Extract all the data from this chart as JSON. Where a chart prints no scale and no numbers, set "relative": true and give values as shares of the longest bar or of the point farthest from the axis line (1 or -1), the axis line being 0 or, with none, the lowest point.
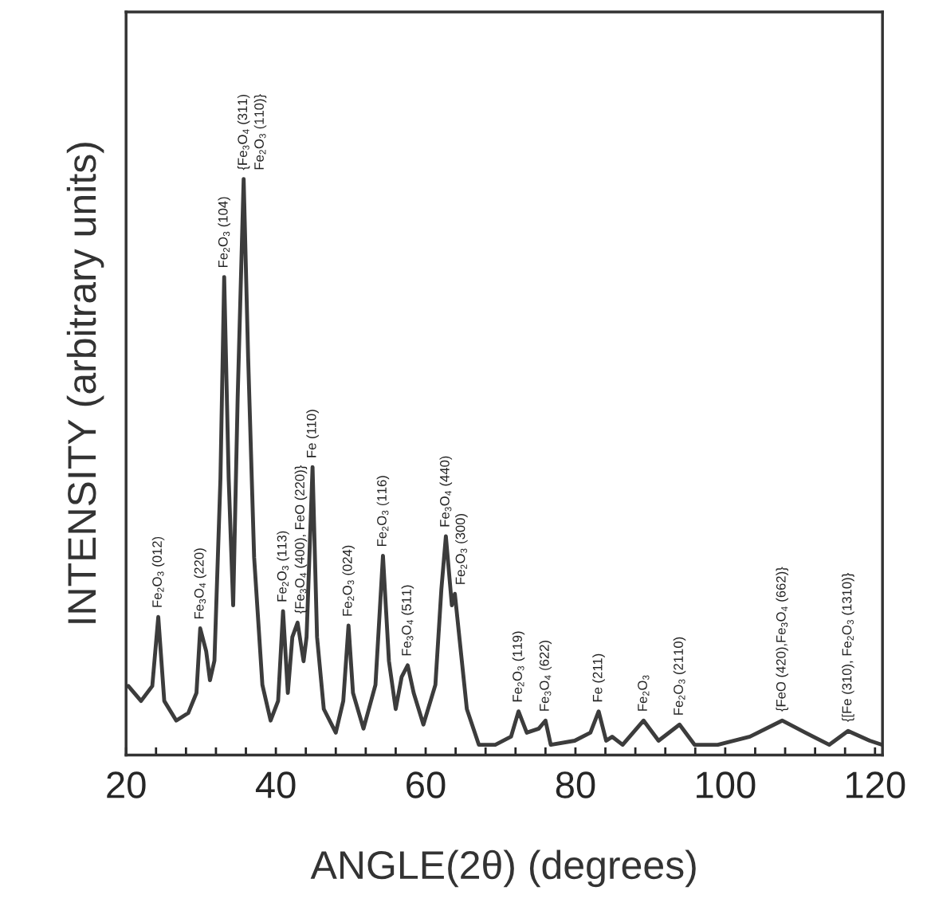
{
  "chart_data": {
    "type": "line",
    "xlabel": "ANGLE(2θ) (degrees)",
    "ylabel": "INTENSITY (arbitrary units)",
    "relative": true,
    "tick_labels": "x",
    "xlim": [
      20,
      121
    ],
    "xticks": [
      20,
      {
        "value": 24,
        "label": null
      },
      {
        "value": 28,
        "label": null
      },
      {
        "value": 32,
        "label": null
      },
      {
        "value": 36,
        "label": null
      },
      40,
      {
        "value": 44,
        "label": null
      },
      {
        "value": 48,
        "label": null
      },
      {
        "value": 52,
        "label": null
      },
      {
        "value": 56,
        "label": null
      },
      60,
      {
        "value": 64,
        "label": null
      },
      {
        "value": 68,
        "label": null
      },
      {
        "value": 72,
        "label": null
      },
      {
        "value": 76,
        "label": null
      },
      80,
      {
        "value": 84,
        "label": null
      },
      {
        "value": 88,
        "label": null
      },
      {
        "value": 92,
        "label": null
      },
      {
        "value": 96,
        "label": null
      },
      100,
      {
        "value": 104,
        "label": null
      },
      {
        "value": 108,
        "label": null
      },
      {
        "value": 112,
        "label": null
      },
      {
        "value": 116,
        "label": null
      },
      120
    ],
    "series": [
      {
        "color": "#3c3c3c",
        "x": [
          20.3,
          22.0,
          23.5,
          24.3,
          25.1,
          26.7,
          28.3,
          29.4,
          29.9,
          30.7,
          31.2,
          31.8,
          32.6,
          33.1,
          33.7,
          34.3,
          34.9,
          35.7,
          36.3,
          37.1,
          38.2,
          39.3,
          40.3,
          40.96,
          41.6,
          42.2,
          42.9,
          43.7,
          44.1,
          44.9,
          45.5,
          46.4,
          48.0,
          49.0,
          49.7,
          50.3,
          51.7,
          53.3,
          54.3,
          55.1,
          56.0,
          56.8,
          57.6,
          58.4,
          59.7,
          61.3,
          62.1,
          62.7,
          63.5,
          63.9,
          64.5,
          65.5,
          67.1,
          69.3,
          71.4,
          72.4,
          73.5,
          75.1,
          76.0,
          76.7,
          79.9,
          82.0,
          83.1,
          84.1,
          84.9,
          86.3,
          89.1,
          91.1,
          93.9,
          95.9,
          99.0,
          103.3,
          107.6,
          110.7,
          113.9,
          116.4,
          119.3,
          120.9
        ],
        "values": [
          0.12,
          0.094,
          0.12,
          0.24,
          0.094,
          0.06,
          0.073,
          0.108,
          0.22,
          0.18,
          0.13,
          0.164,
          0.48,
          0.83,
          0.48,
          0.26,
          0.62,
          1.0,
          0.69,
          0.343,
          0.122,
          0.06,
          0.094,
          0.25,
          0.108,
          0.205,
          0.23,
          0.163,
          0.205,
          0.5,
          0.205,
          0.08,
          0.039,
          0.094,
          0.225,
          0.108,
          0.046,
          0.122,
          0.346,
          0.163,
          0.08,
          0.136,
          0.156,
          0.108,
          0.053,
          0.122,
          0.288,
          0.38,
          0.26,
          0.28,
          0.205,
          0.08,
          0.018,
          0.018,
          0.032,
          0.076,
          0.039,
          0.046,
          0.06,
          0.018,
          0.025,
          0.039,
          0.076,
          0.025,
          0.032,
          0.018,
          0.06,
          0.025,
          0.053,
          0.018,
          0.018,
          0.032,
          0.06,
          0.039,
          0.018,
          0.042,
          0.025,
          0.018
        ]
      }
    ],
    "annotations": [
      {
        "text": "Fe$_{2}$O$_{3}$ (012)",
        "x": 24.3,
        "y": 0.24
      },
      {
        "text": "Fe$_{3}$O$_{4}$ (220)",
        "x": 29.9,
        "y": 0.22
      },
      {
        "text": "Fe$_{2}$O$_{3}$ (104)",
        "x": 33.1,
        "y": 0.83
      },
      {
        "text": "{Fe$_{3}$O$_{4}$ (311)",
        "x": 35.7,
        "y": 1.0
      },
      {
        "text": "Fe$_{2}$O$_{3}$ (110)}",
        "x": 35.7,
        "y": 1.0
      },
      {
        "text": "Fe$_{2}$O$_{3}$ (113)",
        "x": 40.96,
        "y": 0.25
      },
      {
        "text": "{Fe$_{3}$O$_{4}$ (400), FeO (220)}",
        "x": 42.9,
        "y": 0.23
      },
      {
        "text": "Fe (110)",
        "x": 44.9,
        "y": 0.5
      },
      {
        "text": "Fe$_{2}$O$_{3}$ (024)",
        "x": 49.7,
        "y": 0.225
      },
      {
        "text": "Fe$_{2}$O$_{3}$ (116)",
        "x": 54.3,
        "y": 0.346
      },
      {
        "text": "Fe$_{3}$O$_{4}$ (511)",
        "x": 57.6,
        "y": 0.156
      },
      {
        "text": "Fe$_{3}$O$_{4}$ (440)",
        "x": 62.7,
        "y": 0.38
      },
      {
        "text": "Fe$_{2}$O$_{3}$ (300)",
        "x": 63.9,
        "y": 0.28
      },
      {
        "text": "Fe$_{2}$O$_{3}$ (119)",
        "x": 72.4,
        "y": 0.076
      },
      {
        "text": "Fe$_{3}$O$_{4}$ (622)",
        "x": 76.0,
        "y": 0.06
      },
      {
        "text": "Fe (211)",
        "x": 83.1,
        "y": 0.076
      },
      {
        "text": "Fe$_{2}$O$_{3}$",
        "x": 89.1,
        "y": 0.06
      },
      {
        "text": "Fe$_{2}$O$_{3}$ (2110)",
        "x": 93.9,
        "y": 0.053
      },
      {
        "text": "{FeO (420),Fe$_{3}$O$_{4}$ (662)}",
        "x": 107.6,
        "y": 0.06
      },
      {
        "text": "{[Fe (310), Fe$_{2}$O$_{3}$ (1310)}",
        "x": 116.4,
        "y": 0.042
      }
    ]
  }
}
